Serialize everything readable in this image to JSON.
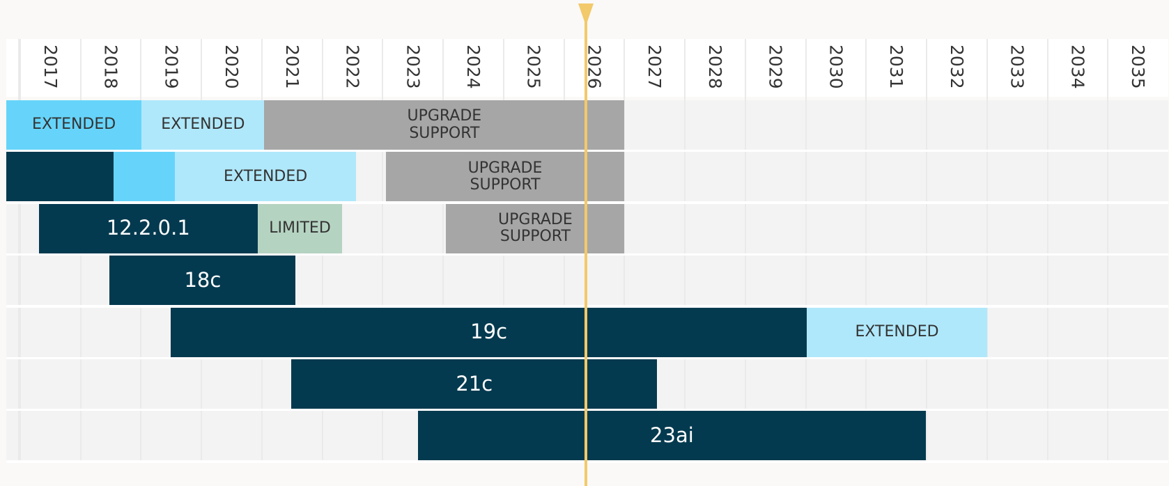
{
  "chart_data": {
    "type": "timeline",
    "xlim": [
      2016.77,
      2036
    ],
    "xticks": [
      2017,
      2018,
      2019,
      2020,
      2021,
      2022,
      2023,
      2024,
      2025,
      2026,
      2027,
      2028,
      2029,
      2030,
      2031,
      2032,
      2033,
      2034,
      2035
    ],
    "current_date": 2026.36,
    "marker_color": "#f2c96b",
    "rows": [
      {
        "segments": [
          {
            "label": "EXTENDED",
            "start": 2016.77,
            "end": 2019.01,
            "color": "#66d4fa"
          },
          {
            "label": "EXTENDED",
            "start": 2019.01,
            "end": 2021.04,
            "color": "#b0e8fb"
          },
          {
            "label": "UPGRADE\nSUPPORT",
            "start": 2021.04,
            "end": 2027.0,
            "color": "#a6a6a6"
          }
        ]
      },
      {
        "segments": [
          {
            "start": 2016.77,
            "end": 2018.54,
            "color": "#043a4f"
          },
          {
            "start": 2018.54,
            "end": 2019.56,
            "color": "#66d4fa"
          },
          {
            "label": "EXTENDED",
            "start": 2019.56,
            "end": 2022.56,
            "color": "#b0e8fb"
          },
          {
            "label": "UPGRADE\nSUPPORT",
            "start": 2023.05,
            "end": 2027.0,
            "color": "#a6a6a6"
          }
        ]
      },
      {
        "segments": [
          {
            "label": "12.2.0.1",
            "start": 2017.31,
            "end": 2020.93,
            "color": "#043a4f"
          },
          {
            "label": "LIMITED",
            "start": 2020.93,
            "end": 2022.33,
            "color": "#b5d3c1"
          },
          {
            "label": "UPGRADE\nSUPPORT",
            "start": 2024.05,
            "end": 2027.0,
            "color": "#a6a6a6"
          }
        ]
      },
      {
        "segments": [
          {
            "label": "18c",
            "start": 2018.48,
            "end": 2021.56,
            "color": "#043a4f"
          }
        ]
      },
      {
        "segments": [
          {
            "label": "19c",
            "start": 2019.49,
            "end": 2030.02,
            "color": "#043a4f"
          },
          {
            "label": "EXTENDED",
            "start": 2030.02,
            "end": 2033.0,
            "color": "#b0e8fb"
          }
        ]
      },
      {
        "segments": [
          {
            "label": "21c",
            "start": 2021.49,
            "end": 2027.54,
            "color": "#043a4f"
          }
        ]
      },
      {
        "segments": [
          {
            "label": "23ai",
            "start": 2023.58,
            "end": 2031.99,
            "color": "#043a4f"
          }
        ]
      }
    ]
  }
}
